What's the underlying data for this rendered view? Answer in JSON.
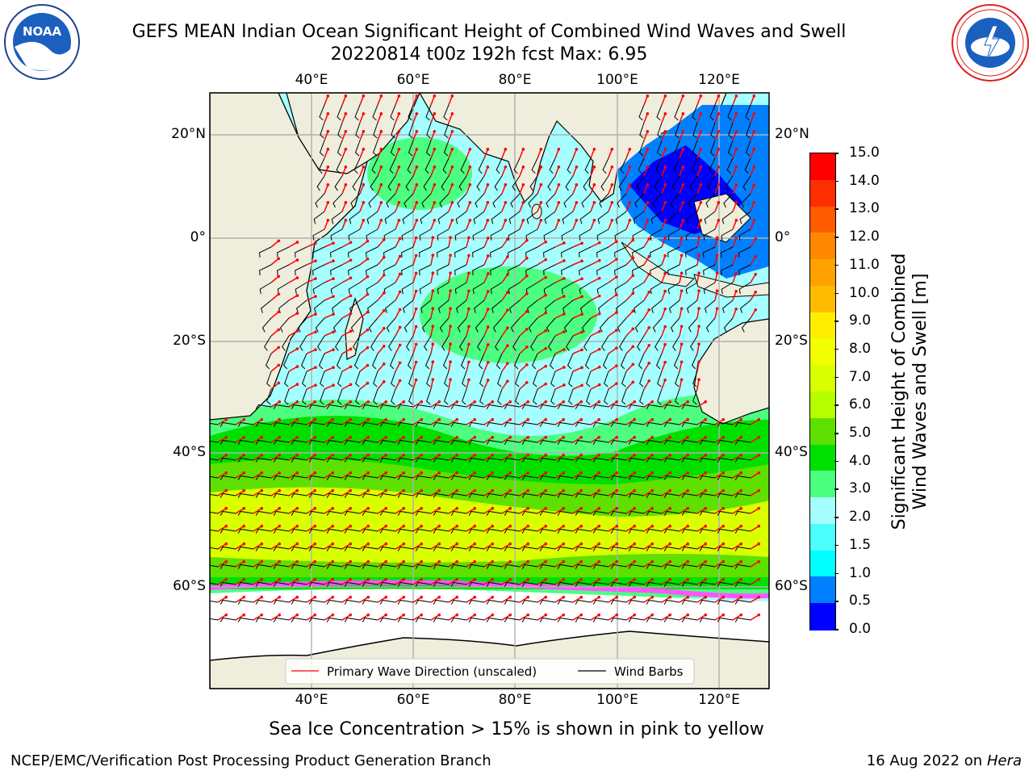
{
  "header": {
    "title_line1": "GEFS MEAN Indian Ocean Significant Height of Combined Wind Waves and Swell",
    "title_line2": "20220814 t00z 192h fcst   Max: 6.95"
  },
  "logos": {
    "noaa_text": "NOAA",
    "nws_text": "NATIONAL WEATHER SERVICE"
  },
  "map": {
    "lon_ticks": [
      "40°E",
      "60°E",
      "80°E",
      "100°E",
      "120°E"
    ],
    "lat_ticks": [
      "20°N",
      "0°",
      "20°S",
      "40°S",
      "60°S"
    ],
    "legend": {
      "wave_label": "Primary Wave Direction (unscaled)",
      "wind_label": "Wind Barbs",
      "wave_color": "#ff0000",
      "wind_color": "#000000"
    },
    "land_color": "#efeedc",
    "ocean_bg_color": "#a5ffff"
  },
  "colorbar": {
    "label_line1": "Significant Height of Combined",
    "label_line2": "Wind Waves and Swell [m]",
    "tick_labels": [
      "15.0",
      "14.0",
      "13.0",
      "12.0",
      "11.0",
      "10.0",
      "9.0",
      "8.0",
      "7.0",
      "6.0",
      "5.0",
      "4.0",
      "3.0",
      "2.0",
      "1.5",
      "1.0",
      "0.5",
      "0.0"
    ],
    "colors_top_to_bottom": [
      "#ff0000",
      "#ff2e00",
      "#ff5b00",
      "#ff8800",
      "#ffa200",
      "#ffbb00",
      "#ffee00",
      "#f1ff00",
      "#d9ff00",
      "#b5ff00",
      "#5ee000",
      "#00e000",
      "#4cff80",
      "#a5ffff",
      "#4cffff",
      "#00ffff",
      "#0080ff",
      "#0000ff"
    ]
  },
  "note": "Sea Ice Concentration > 15% is shown in pink to yellow",
  "footer": {
    "left": "NCEP/EMC/Verification Post Processing Product Generation Branch",
    "right_date": "16 Aug 2022 on",
    "right_machine": "Hera"
  }
}
